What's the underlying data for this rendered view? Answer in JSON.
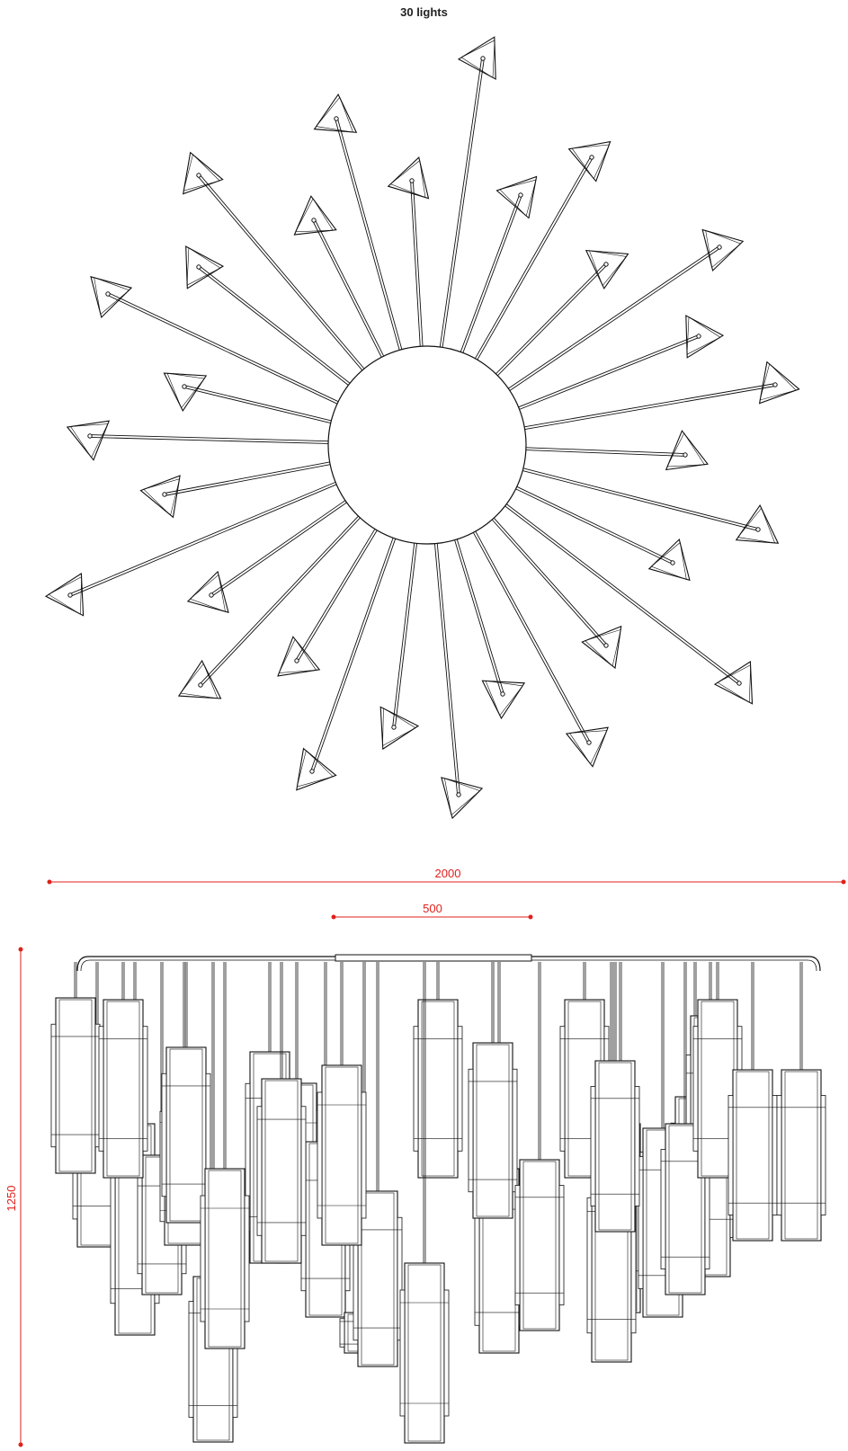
{
  "title": "30 lights",
  "dimensions": {
    "width_total": "2000",
    "canopy_diameter": "500",
    "height_total": "1250"
  },
  "colors": {
    "line": "#111111",
    "dimension": "#e0201b",
    "background": "#ffffff"
  },
  "plan_view": {
    "arm_count": 30
  },
  "elevation_view": {
    "pendant_count": 30
  }
}
